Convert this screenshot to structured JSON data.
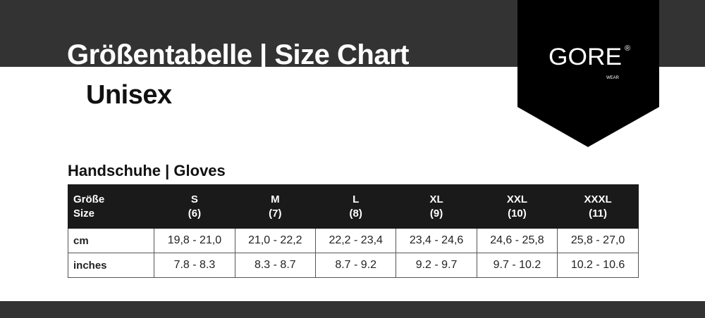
{
  "header": {
    "title": "Größentabelle | Size Chart",
    "subtitle": "Unisex"
  },
  "logo": {
    "text": "GORE",
    "registered": "®",
    "sub": "WEAR"
  },
  "section": "Handschuhe | Gloves",
  "table": {
    "corner": [
      "Größe",
      "Size"
    ],
    "sizes": [
      [
        "S",
        "(6)"
      ],
      [
        "M",
        "(7)"
      ],
      [
        "L",
        "(8)"
      ],
      [
        "XL",
        "(9)"
      ],
      [
        "XXL",
        "(10)"
      ],
      [
        "XXXL",
        "(11)"
      ]
    ],
    "rows": [
      {
        "label": "cm",
        "values": [
          "19,8 - 21,0",
          "21,0 - 22,2",
          "22,2 - 23,4",
          "23,4 - 24,6",
          "24,6 - 25,8",
          "25,8 - 27,0"
        ]
      },
      {
        "label": "inches",
        "values": [
          "7.8 - 8.3",
          "8.3 - 8.7",
          "8.7 - 9.2",
          "9.2 - 9.7",
          "9.7 - 10.2",
          "10.2 - 10.6"
        ]
      }
    ]
  },
  "colors": {
    "band": "#333333",
    "logo_bg": "#000000",
    "table_header": "#1a1a1a"
  }
}
